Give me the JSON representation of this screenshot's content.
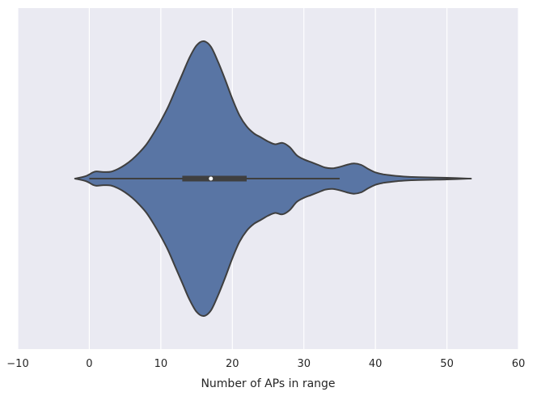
{
  "chart_data": {
    "type": "violin",
    "title": "",
    "xlabel": "Number of APs in range",
    "ylabel": "",
    "xlim": [
      -10,
      60
    ],
    "xticks": [
      -10,
      0,
      10,
      20,
      30,
      40,
      50,
      60
    ],
    "xtick_labels": [
      "−10",
      "0",
      "10",
      "20",
      "30",
      "40",
      "50",
      "60"
    ],
    "grid": true,
    "colors": {
      "background": "#EAEAF2",
      "grid": "#FFFFFF",
      "violin_fill": "#5975A4",
      "violin_edge": "#3F3F3F",
      "box": "#3F3F3F",
      "median": "#FFFFFF"
    },
    "density": {
      "x": [
        -2,
        -0.5,
        0.5,
        1,
        2,
        3,
        4,
        5,
        6,
        7,
        8,
        9,
        10,
        11,
        12,
        13,
        14,
        15,
        16,
        17,
        18,
        19,
        20,
        21,
        22,
        23,
        24,
        25,
        26,
        27,
        28,
        29,
        30,
        31,
        32,
        33,
        34,
        35,
        36,
        37,
        38,
        39,
        40,
        41,
        42,
        43,
        44,
        45,
        46,
        48,
        50,
        53
      ],
      "width": [
        0.0,
        0.018,
        0.045,
        0.052,
        0.048,
        0.05,
        0.07,
        0.1,
        0.14,
        0.19,
        0.25,
        0.33,
        0.42,
        0.52,
        0.64,
        0.76,
        0.88,
        0.97,
        1.0,
        0.96,
        0.85,
        0.72,
        0.58,
        0.46,
        0.38,
        0.33,
        0.3,
        0.27,
        0.25,
        0.26,
        0.23,
        0.17,
        0.14,
        0.12,
        0.1,
        0.08,
        0.075,
        0.085,
        0.1,
        0.11,
        0.1,
        0.07,
        0.045,
        0.032,
        0.025,
        0.019,
        0.015,
        0.012,
        0.01,
        0.008,
        0.006,
        0.0
      ]
    },
    "box": {
      "whisker_low": 0,
      "q1": 13,
      "median": 17,
      "q3": 22,
      "whisker_high": 35
    }
  }
}
